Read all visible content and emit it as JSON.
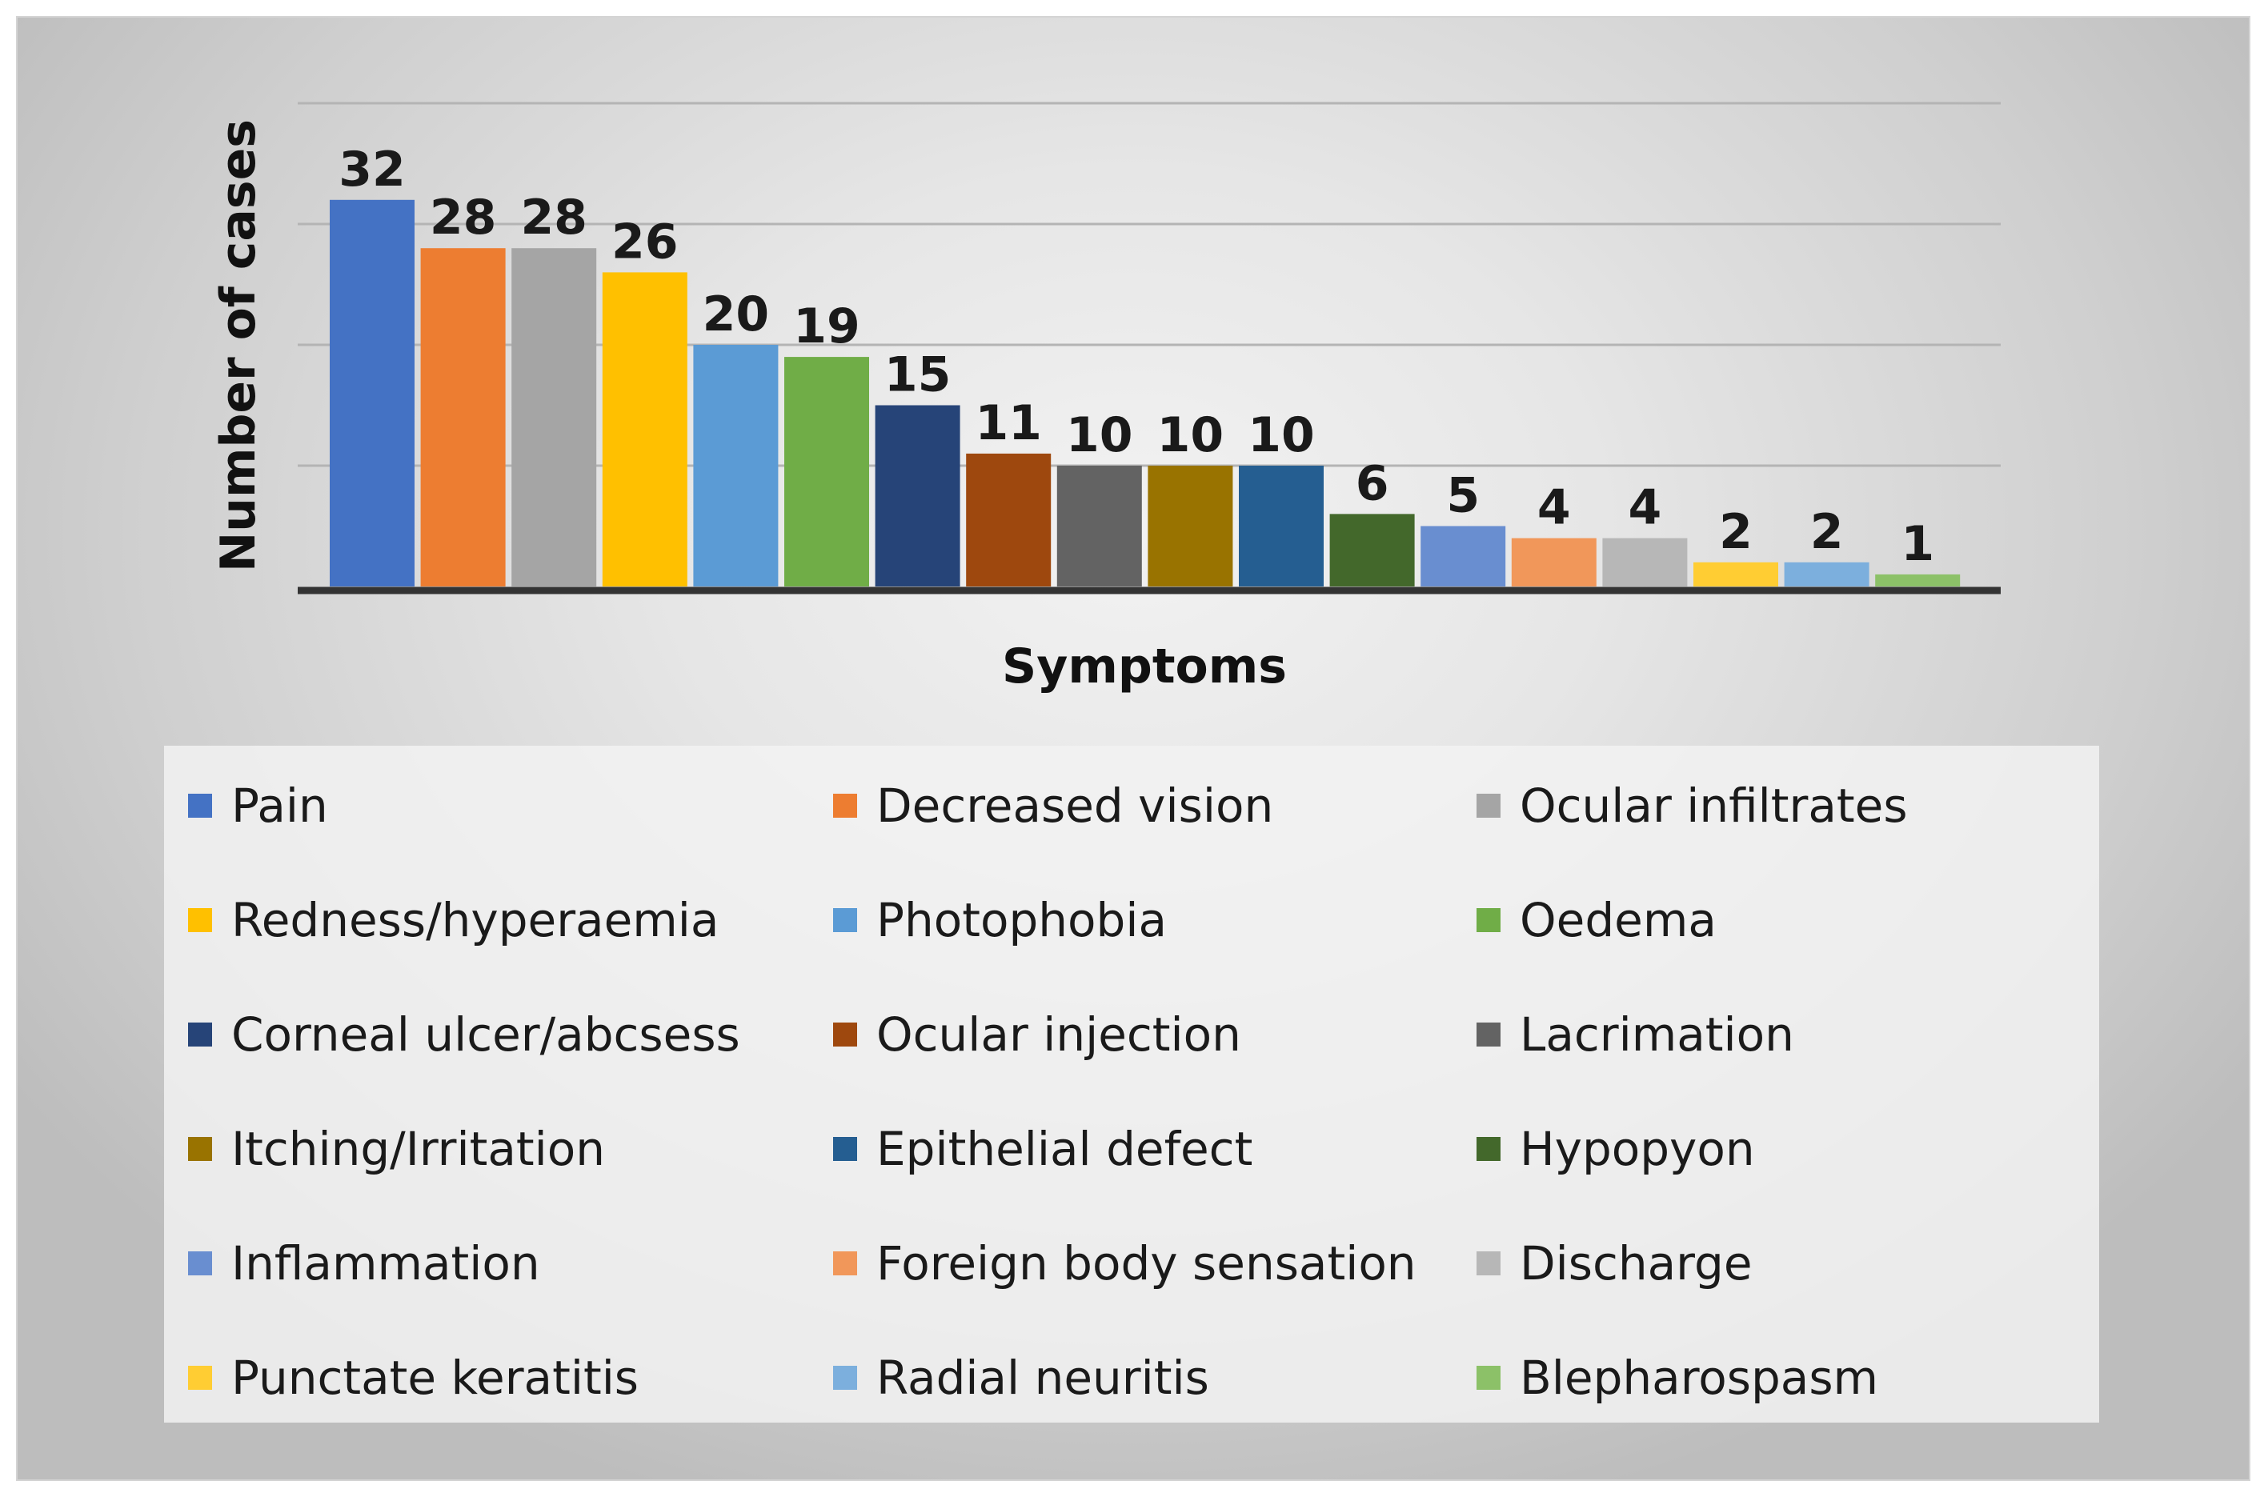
{
  "chart_data": {
    "type": "bar",
    "title": "",
    "xlabel": "Symptoms",
    "ylabel": "Number of cases",
    "ylim": [
      0,
      40
    ],
    "grid": true,
    "legend_position": "bottom",
    "categories": [
      "Pain",
      "Decreased vision",
      "Ocular infiltrates",
      "Redness/hyperaemia",
      "Photophobia",
      "Oedema",
      "Corneal ulcer/abcsess",
      "Ocular injection",
      "Lacrimation",
      "Itching/Irritation",
      "Epithelial defect",
      "Hypopyon",
      "Inflammation",
      "Foreign body sensation",
      "Discharge",
      "Punctate keratitis",
      "Radial neuritis",
      "Blepharospasm"
    ],
    "values": [
      32,
      28,
      28,
      26,
      20,
      19,
      15,
      11,
      10,
      10,
      10,
      6,
      5,
      4,
      4,
      2,
      2,
      1
    ],
    "colors": [
      "#4472C4",
      "#ED7D31",
      "#A5A5A5",
      "#FFC000",
      "#5B9BD5",
      "#70AD47",
      "#264478",
      "#9E480E",
      "#636363",
      "#997300",
      "#255E91",
      "#43682B",
      "#698ED0",
      "#F1975A",
      "#B7B7B7",
      "#FFCD33",
      "#7CAFDD",
      "#8CC168"
    ]
  }
}
